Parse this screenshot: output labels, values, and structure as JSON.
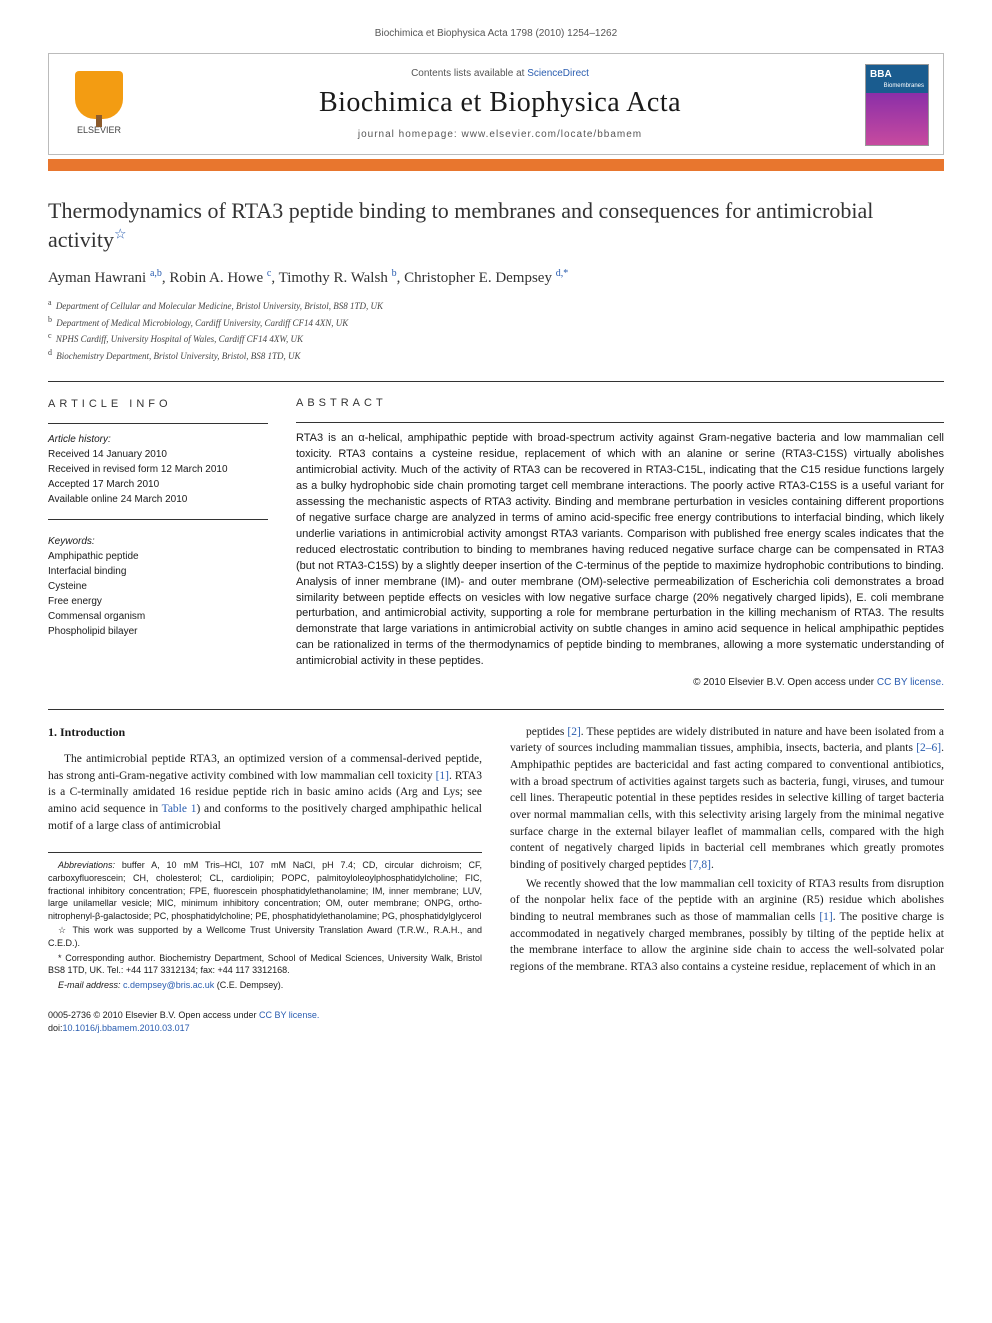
{
  "running_header": "Biochimica et Biophysica Acta 1798 (2010) 1254–1262",
  "masthead": {
    "contents_prefix": "Contents lists available at ",
    "contents_link": "ScienceDirect",
    "journal_title": "Biochimica et Biophysica Acta",
    "homepage_prefix": "journal homepage: ",
    "homepage_url": "www.elsevier.com/locate/bbamem",
    "publisher_label": "ELSEVIER",
    "cover_label": "BBA",
    "cover_sub": "Biomembranes"
  },
  "colors": {
    "accent_bar": "#e8762e",
    "link": "#2a5db0",
    "elsevier_orange": "#f39c12",
    "cover_top": "#1a5c8f",
    "cover_bottom": "#c74a9f"
  },
  "article": {
    "title": "Thermodynamics of RTA3 peptide binding to membranes and consequences for antimicrobial activity",
    "star": "☆",
    "authors_html": "Ayman Hawrani <sup>a,b</sup>, Robin A. Howe <sup>c</sup>, Timothy R. Walsh <sup>b</sup>, Christopher E. Dempsey <sup>d,*</sup>",
    "affiliations": [
      {
        "sup": "a",
        "text": "Department of Cellular and Molecular Medicine, Bristol University, Bristol, BS8 1TD, UK"
      },
      {
        "sup": "b",
        "text": "Department of Medical Microbiology, Cardiff University, Cardiff CF14 4XN, UK"
      },
      {
        "sup": "c",
        "text": "NPHS Cardiff, University Hospital of Wales, Cardiff CF14 4XW, UK"
      },
      {
        "sup": "d",
        "text": "Biochemistry Department, Bristol University, Bristol, BS8 1TD, UK"
      }
    ]
  },
  "article_info": {
    "label": "ARTICLE INFO",
    "history_label": "Article history:",
    "history": [
      "Received 14 January 2010",
      "Received in revised form 12 March 2010",
      "Accepted 17 March 2010",
      "Available online 24 March 2010"
    ],
    "keywords_label": "Keywords:",
    "keywords": [
      "Amphipathic peptide",
      "Interfacial binding",
      "Cysteine",
      "Free energy",
      "Commensal organism",
      "Phospholipid bilayer"
    ]
  },
  "abstract": {
    "label": "ABSTRACT",
    "text": "RTA3 is an α-helical, amphipathic peptide with broad-spectrum activity against Gram-negative bacteria and low mammalian cell toxicity. RTA3 contains a cysteine residue, replacement of which with an alanine or serine (RTA3-C15S) virtually abolishes antimicrobial activity. Much of the activity of RTA3 can be recovered in RTA3-C15L, indicating that the C15 residue functions largely as a bulky hydrophobic side chain promoting target cell membrane interactions. The poorly active RTA3-C15S is a useful variant for assessing the mechanistic aspects of RTA3 activity. Binding and membrane perturbation in vesicles containing different proportions of negative surface charge are analyzed in terms of amino acid-specific free energy contributions to interfacial binding, which likely underlie variations in antimicrobial activity amongst RTA3 variants. Comparison with published free energy scales indicates that the reduced electrostatic contribution to binding to membranes having reduced negative surface charge can be compensated in RTA3 (but not RTA3-C15S) by a slightly deeper insertion of the C-terminus of the peptide to maximize hydrophobic contributions to binding. Analysis of inner membrane (IM)- and outer membrane (OM)-selective permeabilization of Escherichia coli demonstrates a broad similarity between peptide effects on vesicles with low negative surface charge (20% negatively charged lipids), E. coli membrane perturbation, and antimicrobial activity, supporting a role for membrane perturbation in the killing mechanism of RTA3. The results demonstrate that large variations in antimicrobial activity on subtle changes in amino acid sequence in helical amphipathic peptides can be rationalized in terms of the thermodynamics of peptide binding to membranes, allowing a more systematic understanding of antimicrobial activity in these peptides.",
    "copyright": "© 2010 Elsevier B.V.",
    "license_prefix": "Open access under ",
    "license_link": "CC BY license."
  },
  "body": {
    "section_heading": "1. Introduction",
    "col1_p1": "The antimicrobial peptide RTA3, an optimized version of a commensal-derived peptide, has strong anti-Gram-negative activity combined with low mammalian cell toxicity [1]. RTA3 is a C-terminally amidated 16 residue peptide rich in basic amino acids (Arg and Lys; see amino acid sequence in Table 1) and conforms to the positively charged amphipathic helical motif of a large class of antimicrobial",
    "col2_p1": "peptides [2]. These peptides are widely distributed in nature and have been isolated from a variety of sources including mammalian tissues, amphibia, insects, bacteria, and plants [2–6]. Amphipathic peptides are bactericidal and fast acting compared to conventional antibiotics, with a broad spectrum of activities against targets such as bacteria, fungi, viruses, and tumour cell lines. Therapeutic potential in these peptides resides in selective killing of target bacteria over normal mammalian cells, with this selectivity arising largely from the minimal negative surface charge in the external bilayer leaflet of mammalian cells, compared with the high content of negatively charged lipids in bacterial cell membranes which greatly promotes binding of positively charged peptides [7,8].",
    "col2_p2": "We recently showed that the low mammalian cell toxicity of RTA3 results from disruption of the nonpolar helix face of the peptide with an arginine (R5) residue which abolishes binding to neutral membranes such as those of mammalian cells [1]. The positive charge is accommodated in negatively charged membranes, possibly by tilting of the peptide helix at the membrane interface to allow the arginine side chain to access the well-solvated polar regions of the membrane. RTA3 also contains a cysteine residue, replacement of which in an"
  },
  "footnotes": {
    "abbrev_label": "Abbreviations:",
    "abbrev_text": " buffer A, 10 mM Tris–HCl, 107 mM NaCl, pH 7.4; CD, circular dichroism; CF, carboxyfluorescein; CH, cholesterol; CL, cardiolipin; POPC, palmitoyloleoylphosphatidylcholine; FIC, fractional inhibitory concentration; FPE, fluorescein phosphatidylethanolamine; IM, inner membrane; LUV, large unilamellar vesicle; MIC, minimum inhibitory concentration; OM, outer membrane; ONPG, ortho-nitrophenyl-β-galactoside; PC, phosphatidylcholine; PE, phosphatidylethanolamine; PG, phosphatidylglycerol",
    "funding": "☆ This work was supported by a Wellcome Trust University Translation Award (T.R.W., R.A.H., and C.E.D.).",
    "corresponding": "* Corresponding author. Biochemistry Department, School of Medical Sciences, University Walk, Bristol BS8 1TD, UK. Tel.: +44 117 3312134; fax: +44 117 3312168.",
    "email_label": "E-mail address:",
    "email": "c.dempsey@bris.ac.uk",
    "email_suffix": " (C.E. Dempsey)."
  },
  "footer": {
    "issn_line": "0005-2736  © 2010 Elsevier B.V.",
    "license_prefix": "Open access under ",
    "license_link": "CC BY license.",
    "doi_prefix": "doi:",
    "doi": "10.1016/j.bbamem.2010.03.017"
  }
}
